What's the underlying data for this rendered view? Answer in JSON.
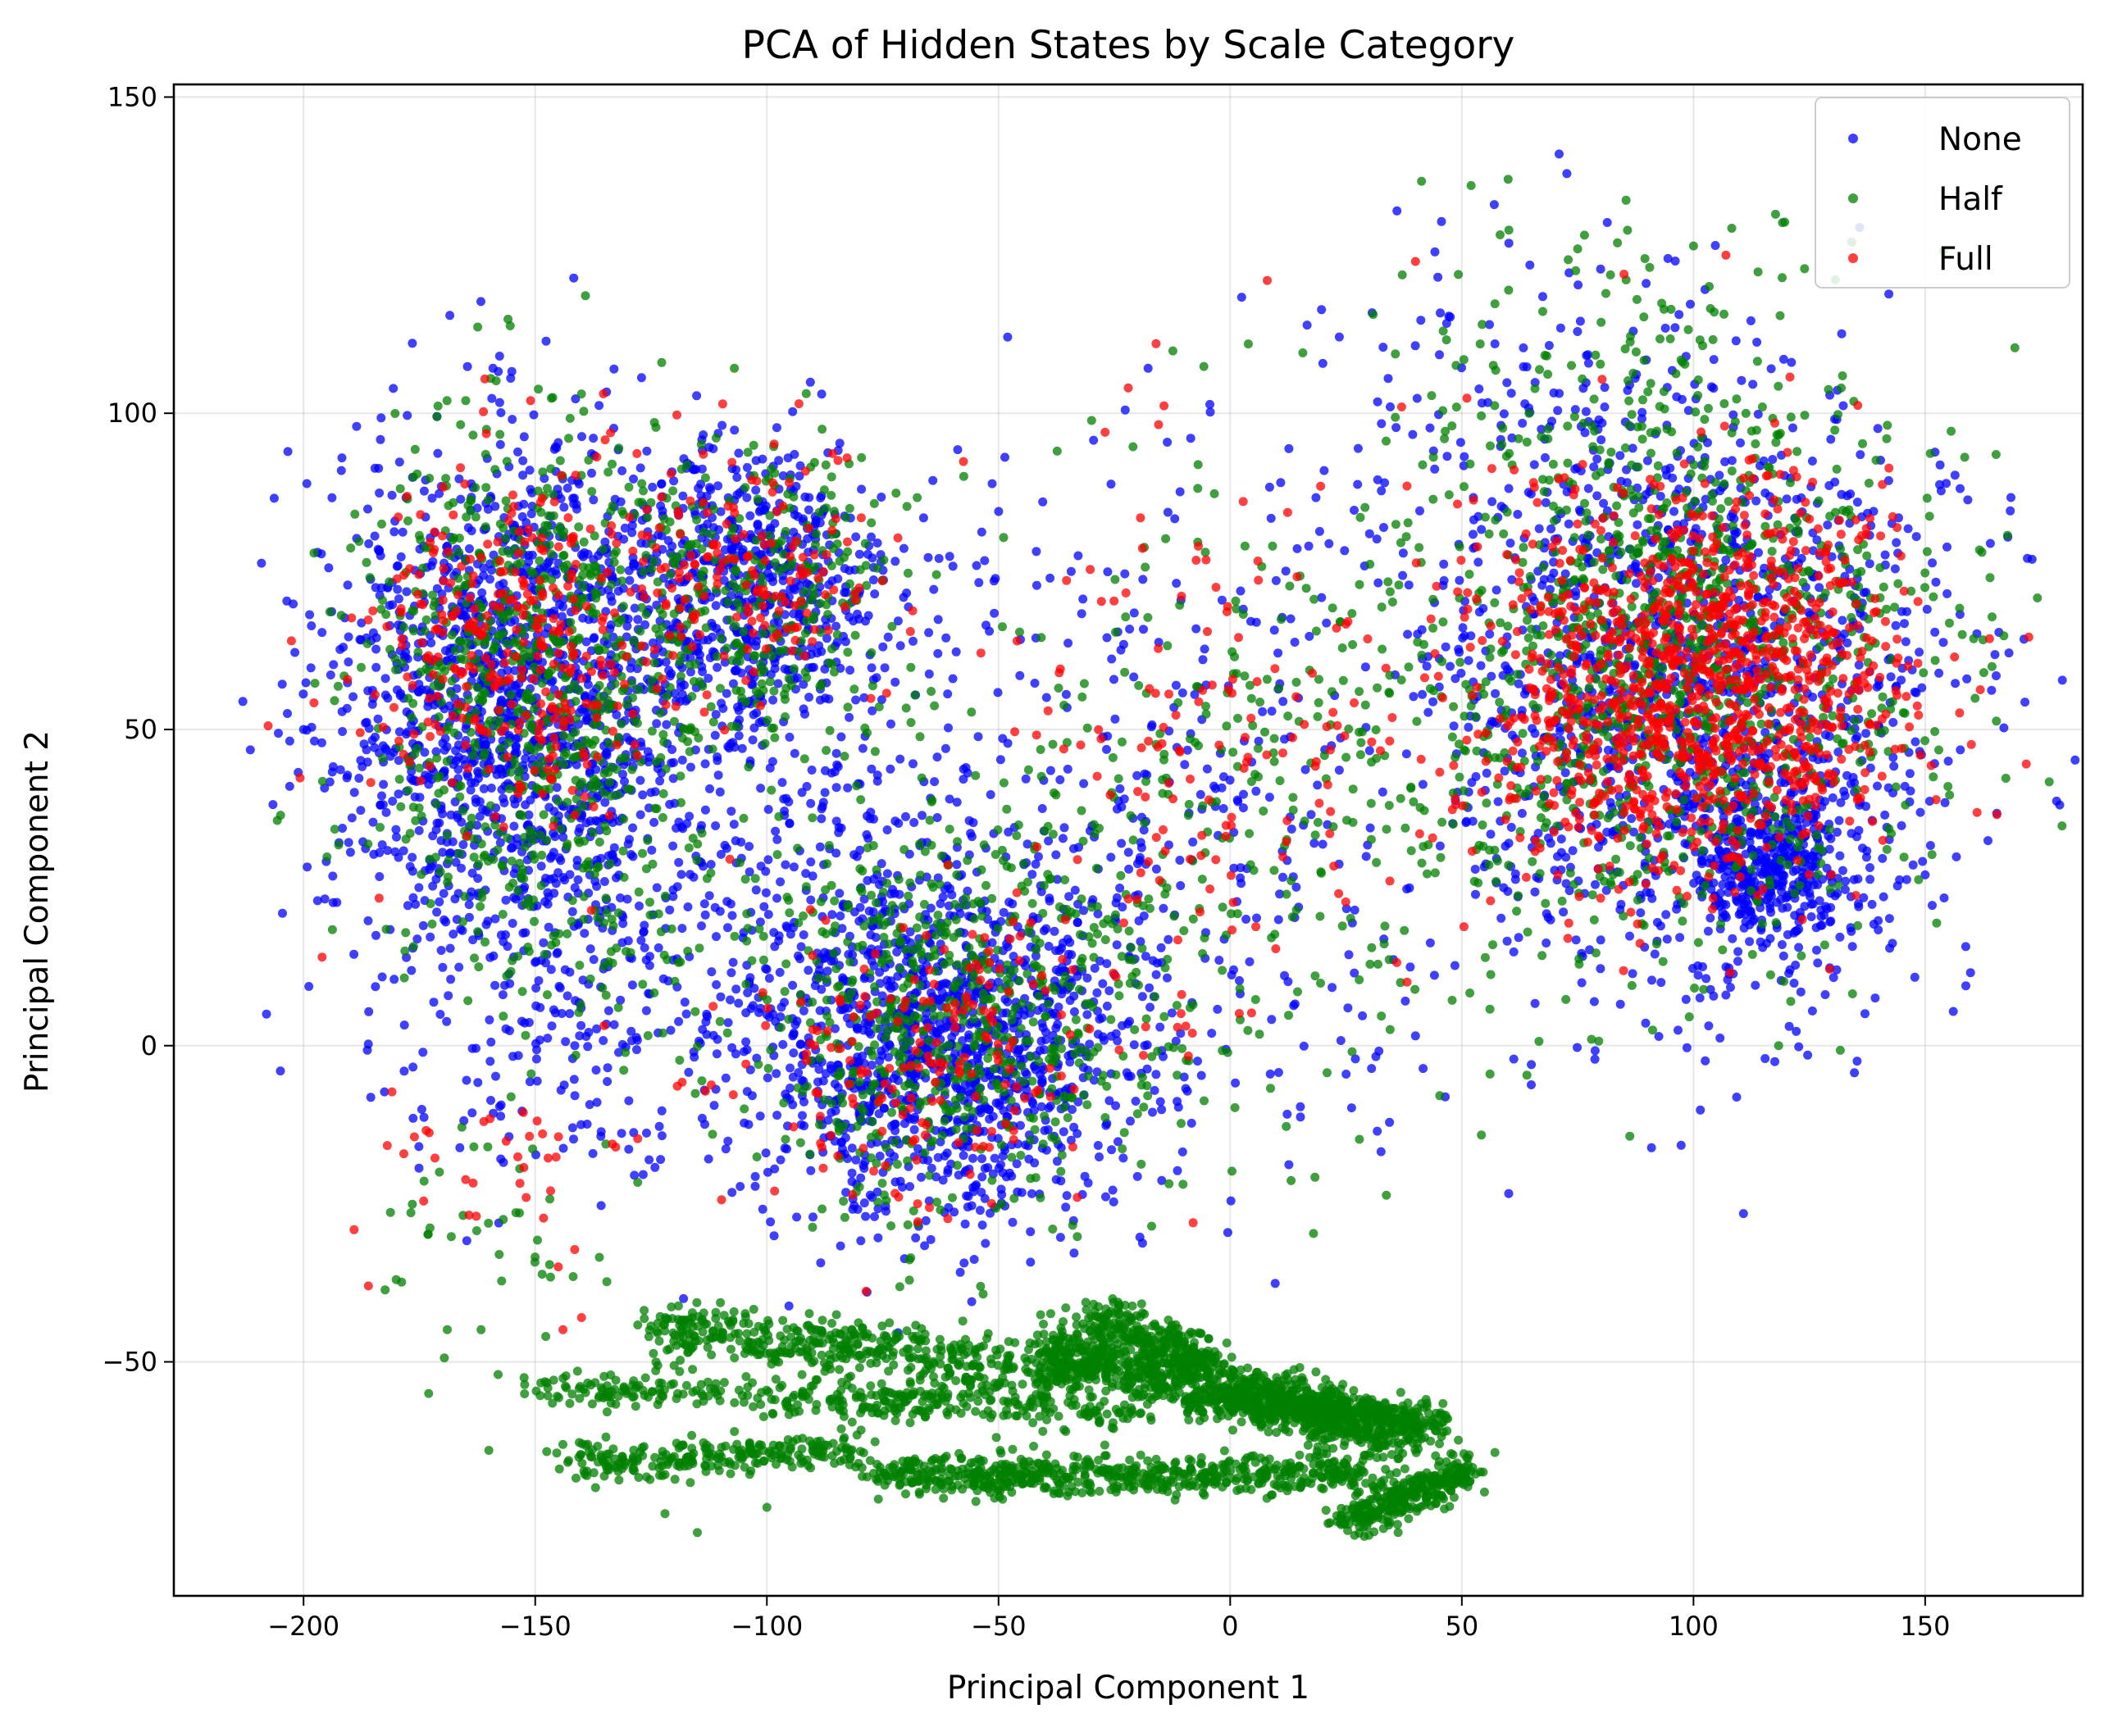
{
  "chart_data": {
    "type": "scatter",
    "title": "PCA of Hidden States by Scale Category",
    "xlabel": "Principal Component 1",
    "ylabel": "Principal Component 2",
    "xlim": [
      -228,
      184
    ],
    "ylim": [
      -87,
      152
    ],
    "xticks": [
      -200,
      -150,
      -100,
      -50,
      0,
      50,
      100,
      150
    ],
    "yticks": [
      -50,
      0,
      50,
      100,
      150
    ],
    "xtick_labels": [
      "−200",
      "−150",
      "−100",
      "−50",
      "0",
      "50",
      "100",
      "150"
    ],
    "ytick_labels": [
      "−50",
      "0",
      "50",
      "100",
      "150"
    ],
    "grid": true,
    "legend_position": "top-right",
    "point_alpha": 0.75,
    "series": [
      {
        "name": "None",
        "color": "#0000ff",
        "clusters": [
          {
            "cx": -155,
            "cy": 55,
            "sx": 20,
            "sy": 20,
            "n": 1400
          },
          {
            "cx": -105,
            "cy": 72,
            "sx": 17,
            "sy": 12,
            "n": 650
          },
          {
            "cx": -62,
            "cy": 0,
            "sx": 20,
            "sy": 14,
            "n": 1200
          },
          {
            "cx": -88,
            "cy": 30,
            "sx": 22,
            "sy": 16,
            "n": 250
          },
          {
            "cx": -140,
            "cy": 10,
            "sx": 20,
            "sy": 15,
            "n": 250
          },
          {
            "cx": -10,
            "cy": 35,
            "sx": 30,
            "sy": 28,
            "n": 350
          },
          {
            "cx": 100,
            "cy": 55,
            "sx": 28,
            "sy": 24,
            "n": 1400
          },
          {
            "cx": 115,
            "cy": 28,
            "sx": 9,
            "sy": 6,
            "n": 400
          },
          {
            "cx": 65,
            "cy": 95,
            "sx": 30,
            "sy": 18,
            "n": 150
          }
        ],
        "samples": [
          {
            "x": -208,
            "y": 5
          },
          {
            "x": -205,
            "y": -4
          },
          {
            "x": -203,
            "y": 41
          },
          {
            "x": -200,
            "y": 50
          },
          {
            "x": -197,
            "y": 78
          },
          {
            "x": -133,
            "y": 107
          },
          {
            "x": 71,
            "y": 141
          },
          {
            "x": 57,
            "y": 133
          },
          {
            "x": 36,
            "y": 132
          },
          {
            "x": 159,
            "y": 58
          },
          {
            "x": 155,
            "y": 45
          },
          {
            "x": 150,
            "y": 27
          },
          {
            "x": 93,
            "y": 10
          },
          {
            "x": 107,
            "y": 8
          },
          {
            "x": 65,
            "y": -3
          },
          {
            "x": -118,
            "y": -40
          }
        ]
      },
      {
        "name": "Half",
        "color": "#008000",
        "clusters": [
          {
            "cx": -152,
            "cy": 60,
            "sx": 18,
            "sy": 18,
            "n": 650
          },
          {
            "cx": -102,
            "cy": 72,
            "sx": 17,
            "sy": 12,
            "n": 300
          },
          {
            "cx": -60,
            "cy": 5,
            "sx": 22,
            "sy": 15,
            "n": 650
          },
          {
            "cx": -140,
            "cy": 20,
            "sx": 22,
            "sy": 18,
            "n": 150
          },
          {
            "cx": -160,
            "cy": -30,
            "sx": 14,
            "sy": 10,
            "n": 40
          },
          {
            "cx": 5,
            "cy": 40,
            "sx": 28,
            "sy": 25,
            "n": 300
          },
          {
            "cx": 95,
            "cy": 60,
            "sx": 28,
            "sy": 22,
            "n": 1100
          },
          {
            "cx": 80,
            "cy": 110,
            "sx": 25,
            "sy": 12,
            "n": 100
          }
        ],
        "bands": [
          {
            "x0": -125,
            "y0": -45,
            "x1": -30,
            "y1": -52,
            "w": 5,
            "n": 500
          },
          {
            "x0": -40,
            "y0": -48,
            "x1": 40,
            "y1": -62,
            "w": 5,
            "n": 900
          },
          {
            "x0": -150,
            "y0": -54,
            "x1": -20,
            "y1": -58,
            "w": 3,
            "n": 350
          },
          {
            "x0": -145,
            "y0": -66,
            "x1": -80,
            "y1": -64,
            "w": 3,
            "n": 250
          },
          {
            "x0": -75,
            "y0": -68,
            "x1": 30,
            "y1": -68,
            "w": 3,
            "n": 600
          },
          {
            "x0": 25,
            "y0": -75,
            "x1": 52,
            "y1": -67,
            "w": 3,
            "n": 300
          },
          {
            "x0": -30,
            "y0": -43,
            "x1": -5,
            "y1": -50,
            "w": 4,
            "n": 250
          },
          {
            "x0": 0,
            "y0": -55,
            "x1": 45,
            "y1": -60,
            "w": 3,
            "n": 400
          }
        ],
        "samples": [
          {
            "x": -165,
            "y": 102
          },
          {
            "x": -95,
            "y": 85
          },
          {
            "x": 60,
            "y": 137
          },
          {
            "x": 52,
            "y": 136
          },
          {
            "x": 75,
            "y": 126
          },
          {
            "x": 164,
            "y": 74
          },
          {
            "x": 158,
            "y": 65
          },
          {
            "x": 121,
            "y": 7
          },
          {
            "x": 78,
            "y": 1
          },
          {
            "x": -180,
            "y": -37
          },
          {
            "x": -173,
            "y": -55
          },
          {
            "x": -160,
            "y": -64
          },
          {
            "x": -158,
            "y": -52
          },
          {
            "x": -122,
            "y": -74
          },
          {
            "x": -115,
            "y": -77
          },
          {
            "x": -100,
            "y": -73
          }
        ]
      },
      {
        "name": "Full",
        "color": "#ff0000",
        "clusters": [
          {
            "cx": -155,
            "cy": 62,
            "sx": 17,
            "sy": 14,
            "n": 320
          },
          {
            "cx": -103,
            "cy": 75,
            "sx": 15,
            "sy": 9,
            "n": 150
          },
          {
            "cx": -65,
            "cy": -3,
            "sx": 18,
            "sy": 12,
            "n": 180
          },
          {
            "cx": -5,
            "cy": 45,
            "sx": 25,
            "sy": 22,
            "n": 150
          },
          {
            "cx": 95,
            "cy": 55,
            "sx": 24,
            "sy": 15,
            "n": 900
          },
          {
            "cx": 115,
            "cy": 65,
            "sx": 15,
            "sy": 14,
            "n": 250
          },
          {
            "cx": -150,
            "cy": -20,
            "sx": 20,
            "sy": 10,
            "n": 40
          }
        ],
        "samples": [
          {
            "x": -151,
            "y": 102
          },
          {
            "x": 107,
            "y": 125
          },
          {
            "x": -186,
            "y": -38
          },
          {
            "x": -196,
            "y": 14
          },
          {
            "x": -140,
            "y": -43
          },
          {
            "x": 8,
            "y": 121
          },
          {
            "x": -27,
            "y": 97
          },
          {
            "x": -22,
            "y": 104
          },
          {
            "x": -16,
            "y": 111
          },
          {
            "x": 37,
            "y": 101
          },
          {
            "x": -8,
            "y": -28
          },
          {
            "x": -33,
            "y": -24
          },
          {
            "x": 40,
            "y": 124
          },
          {
            "x": 85,
            "y": 122
          },
          {
            "x": -46,
            "y": 64
          }
        ]
      }
    ]
  }
}
